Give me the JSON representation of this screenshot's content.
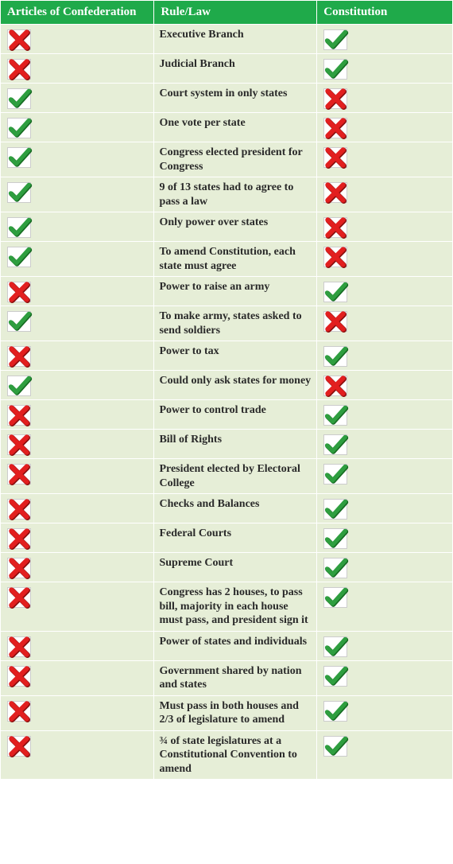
{
  "columns": {
    "aoc": "Articles of Confederation",
    "rule": "Rule/Law",
    "const": "Constitution"
  },
  "colors": {
    "header_bg": "#1faa4a",
    "header_text": "#ffffff",
    "cell_bg": "#e6eed7",
    "check_fill": "#2e9e3f",
    "check_shadow": "#166b22",
    "cross_fill": "#e21f1f",
    "cross_shadow": "#8a0f0f",
    "icon_box_bg": "#ffffff",
    "icon_box_border": "#cccccc"
  },
  "rows": [
    {
      "rule": "Executive Branch",
      "aoc": "x",
      "const": "check"
    },
    {
      "rule": "Judicial Branch",
      "aoc": "x",
      "const": "check"
    },
    {
      "rule": "Court system in only states",
      "aoc": "check",
      "const": "x"
    },
    {
      "rule": "One vote per state",
      "aoc": "check",
      "const": "x"
    },
    {
      "rule": "Congress elected president for Congress",
      "aoc": "check",
      "const": "x"
    },
    {
      "rule": "9 of 13 states had to agree to pass a law",
      "aoc": "check",
      "const": "x"
    },
    {
      "rule": "Only power over states",
      "aoc": "check",
      "const": "x"
    },
    {
      "rule": "To amend Constitution, each state must agree",
      "aoc": "check",
      "const": "x"
    },
    {
      "rule": "Power to raise an army",
      "aoc": "x",
      "const": "check"
    },
    {
      "rule": "To make army, states asked to send soldiers",
      "aoc": "check",
      "const": "x"
    },
    {
      "rule": "Power to tax",
      "aoc": "x",
      "const": "check"
    },
    {
      "rule": "Could only ask states for money",
      "aoc": "check",
      "const": "x"
    },
    {
      "rule": "Power to control trade",
      "aoc": "x",
      "const": "check"
    },
    {
      "rule": "Bill of Rights",
      "aoc": "x",
      "const": "check"
    },
    {
      "rule": "President elected by Electoral College",
      "aoc": "x",
      "const": "check"
    },
    {
      "rule": "Checks and Balances",
      "aoc": "x",
      "const": "check"
    },
    {
      "rule": "Federal Courts",
      "aoc": "x",
      "const": "check"
    },
    {
      "rule": "Supreme Court",
      "aoc": "x",
      "const": "check"
    },
    {
      "rule": "Congress has 2 houses, to pass bill, majority in each house must pass, and president sign it",
      "aoc": "x",
      "const": "check"
    },
    {
      "rule": "Power of states and individuals",
      "aoc": "x",
      "const": "check"
    },
    {
      "rule": "Government shared by nation and states",
      "aoc": "x",
      "const": "check"
    },
    {
      "rule": "Must pass in both houses and 2/3 of legislature to amend",
      "aoc": "x",
      "const": "check"
    },
    {
      "rule": "¾ of state legislatures at a Constitutional Convention to amend",
      "aoc": "x",
      "const": "check"
    }
  ]
}
